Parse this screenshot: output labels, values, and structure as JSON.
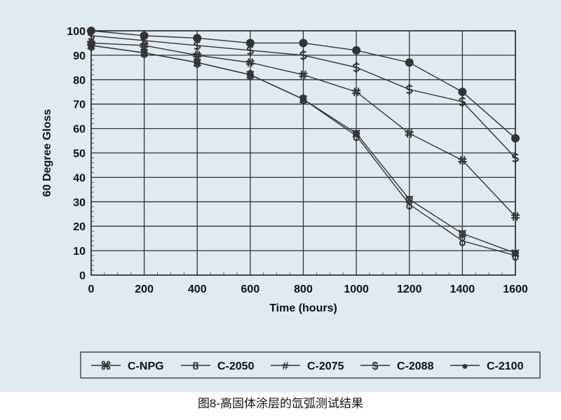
{
  "caption": "图8-高固体涂层的氙弧测试结果",
  "chart_data": {
    "type": "line",
    "title": "",
    "xlabel": "Time (hours)",
    "ylabel": "60 Degree Gloss",
    "x": [
      0,
      200,
      400,
      600,
      800,
      1000,
      1200,
      1400,
      1600
    ],
    "xlim": [
      0,
      1600
    ],
    "ylim": [
      0,
      100
    ],
    "xticks": [
      0,
      200,
      400,
      600,
      800,
      1000,
      1200,
      1400,
      1600
    ],
    "yticks": [
      0,
      10,
      20,
      30,
      40,
      50,
      60,
      70,
      80,
      90,
      100
    ],
    "grid": true,
    "legend_position": "bottom",
    "series": [
      {
        "name": "C-NPG",
        "marker": "⌘",
        "values": [
          94,
          91,
          87,
          82,
          72,
          58,
          31,
          17,
          9
        ]
      },
      {
        "name": "C-2050",
        "marker": "8",
        "values": [
          94,
          91,
          87,
          82,
          72,
          57,
          29,
          14,
          8
        ]
      },
      {
        "name": "C-2075",
        "marker": "#",
        "values": [
          95,
          94,
          90,
          87,
          82,
          75,
          58,
          47,
          24
        ]
      },
      {
        "name": "C-2088",
        "marker": "$",
        "values": [
          98,
          96,
          94,
          92,
          90,
          85,
          76,
          71,
          48
        ]
      },
      {
        "name": "C-2100",
        "marker": "●",
        "values": [
          100,
          98,
          97,
          95,
          95,
          92,
          87,
          75,
          56
        ]
      }
    ]
  }
}
